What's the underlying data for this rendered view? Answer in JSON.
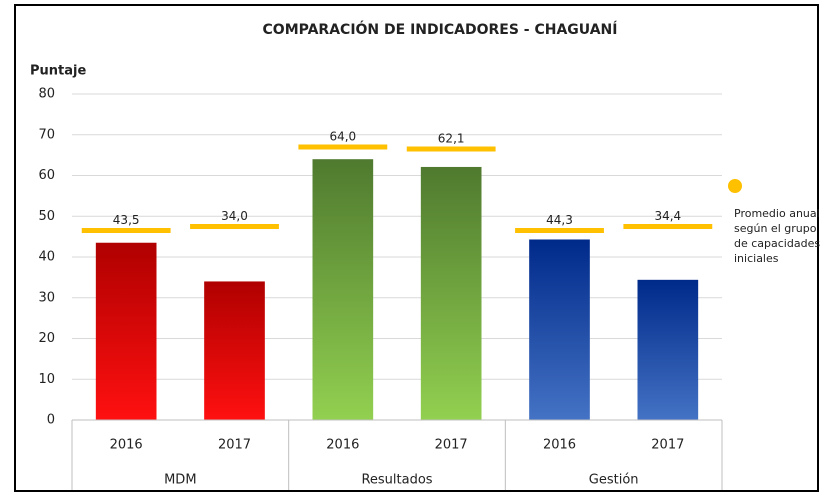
{
  "chart_data": {
    "type": "bar",
    "title": "COMPARACIÓN DE INDICADORES - CHAGUANÍ",
    "ylabel": "Puntaje",
    "ylim": [
      0,
      80
    ],
    "yticks": [
      0,
      10,
      20,
      30,
      40,
      50,
      60,
      70,
      80
    ],
    "grid": true,
    "groups": [
      {
        "name": "MDM",
        "categories": [
          "2016",
          "2017"
        ],
        "values": [
          43.5,
          34.0
        ],
        "value_labels": [
          "43,5",
          "34,0"
        ],
        "colors": [
          "#b00000",
          "#ff1010"
        ]
      },
      {
        "name": "Resultados",
        "categories": [
          "2016",
          "2017"
        ],
        "values": [
          64.0,
          62.1
        ],
        "value_labels": [
          "64,0",
          "62,1"
        ],
        "colors": [
          "#4f7a2f",
          "#92d050"
        ]
      },
      {
        "name": "Gestión",
        "categories": [
          "2016",
          "2017"
        ],
        "values": [
          44.3,
          34.4
        ],
        "value_labels": [
          "44,3",
          "34,4"
        ],
        "colors": [
          "#002a8a",
          "#4472c4"
        ]
      }
    ],
    "average": {
      "name": "Promedio anual según el grupo de capacidades iniciales",
      "color": "#ffc000",
      "values": [
        46.5,
        47.5,
        67.0,
        66.5,
        46.5,
        47.5
      ]
    }
  }
}
